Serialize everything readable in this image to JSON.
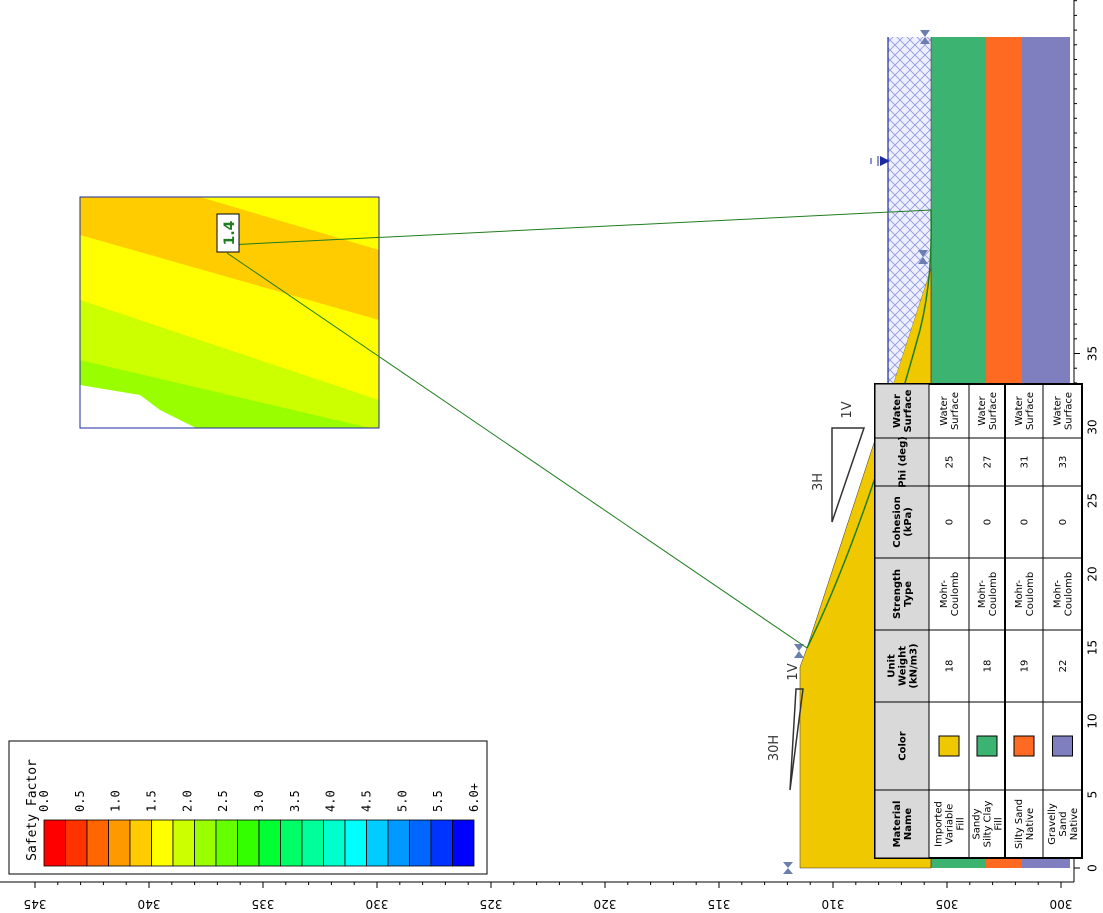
{
  "legend": {
    "title": "Safety Factor",
    "labels": [
      "0.0",
      "0.5",
      "1.0",
      "1.5",
      "2.0",
      "2.5",
      "3.0",
      "3.5",
      "4.0",
      "4.5",
      "5.0",
      "5.5",
      "6.0+"
    ],
    "colors": [
      "#ff0000",
      "#ff3300",
      "#ff6600",
      "#ff9900",
      "#ffcc00",
      "#ffff00",
      "#ccff00",
      "#99ff00",
      "#66ff00",
      "#33ff00",
      "#00ff33",
      "#00ff66",
      "#00ff99",
      "#00ffcc",
      "#00ffff",
      "#00ccff",
      "#0099ff",
      "#0066ff",
      "#0033ff",
      "#0000ff"
    ]
  },
  "axis_elevation": {
    "labels": [
      "345",
      "340",
      "335",
      "330",
      "325",
      "320",
      "315",
      "310",
      "305",
      "300"
    ]
  },
  "axis_distance": {
    "labels": [
      "0",
      "5",
      "10",
      "15",
      "20",
      "25",
      "30",
      "35"
    ]
  },
  "critical_fs": "1.4",
  "slope_labels": {
    "upper_v": "1V",
    "upper_h": "30H",
    "lower_v": "1V",
    "lower_h": "3H"
  },
  "material_table": {
    "headers": [
      "Material Name",
      "Color",
      "Unit Weight (kN/m3)",
      "Strength Type",
      "Cohesion (kPa)",
      "Phi (deg)",
      "Water Surface"
    ],
    "rows": [
      {
        "name": "Imported Variable Fill",
        "color": "#f0c800",
        "unit_weight": "18",
        "strength": "Mohr-Coulomb",
        "cohesion": "0",
        "phi": "25",
        "water": "Water Surface"
      },
      {
        "name": "Sandy Silty Clay Fill",
        "color": "#3cb371",
        "unit_weight": "18",
        "strength": "Mohr-Coulomb",
        "cohesion": "0",
        "phi": "27",
        "water": "Water Surface"
      },
      {
        "name": "Silty Sand Native",
        "color": "#ff6a22",
        "unit_weight": "19",
        "strength": "Mohr-Coulomb",
        "cohesion": "0",
        "phi": "31",
        "water": "Water Surface"
      },
      {
        "name": "Gravelly Sand Native",
        "color": "#7f7fbf",
        "unit_weight": "22",
        "strength": "Mohr-Coulomb",
        "cohesion": "0",
        "phi": "33",
        "water": "Water Surface"
      }
    ]
  }
}
